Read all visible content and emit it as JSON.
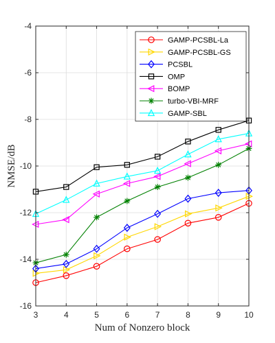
{
  "chart_data": {
    "type": "line",
    "title": "",
    "xlabel": "Num of Nonzero block",
    "ylabel": "NMSE/dB",
    "xlim": [
      3,
      10
    ],
    "ylim": [
      -16,
      -4
    ],
    "x": [
      3,
      4,
      5,
      6,
      7,
      8,
      9,
      10
    ],
    "xticks": [
      3,
      4,
      5,
      6,
      7,
      8,
      9,
      10
    ],
    "yticks": [
      -16,
      -14,
      -12,
      -10,
      -8,
      -6,
      -4
    ],
    "grid": true,
    "legend": "top-right",
    "series": [
      {
        "name": "GAMP-PCSBL-La",
        "color": "#ff0000",
        "marker": "circle",
        "values": [
          -15.0,
          -14.7,
          -14.3,
          -13.55,
          -13.15,
          -12.45,
          -12.2,
          -11.6
        ]
      },
      {
        "name": "GAMP-PCSBL-GS",
        "color": "#ffd700",
        "marker": "triangle-right",
        "values": [
          -14.6,
          -14.45,
          -13.85,
          -13.05,
          -12.6,
          -12.05,
          -11.8,
          -11.3
        ]
      },
      {
        "name": "PCSBL",
        "color": "#0000ff",
        "marker": "diamond",
        "values": [
          -14.4,
          -14.2,
          -13.55,
          -12.65,
          -12.05,
          -11.4,
          -11.15,
          -11.05
        ]
      },
      {
        "name": "OMP",
        "color": "#000000",
        "marker": "square",
        "values": [
          -11.1,
          -10.9,
          -10.05,
          -9.95,
          -9.6,
          -8.95,
          -8.45,
          -8.05
        ]
      },
      {
        "name": "BOMP",
        "color": "#ff00ff",
        "marker": "triangle-left",
        "values": [
          -12.5,
          -12.3,
          -11.2,
          -10.75,
          -10.45,
          -9.9,
          -9.35,
          -9.05
        ]
      },
      {
        "name": "turbo-VBI-MRF",
        "color": "#008000",
        "marker": "star",
        "values": [
          -14.15,
          -13.8,
          -12.2,
          -11.5,
          -10.9,
          -10.5,
          -9.95,
          -9.25
        ]
      },
      {
        "name": "GAMP-SBL",
        "color": "#00ffff",
        "marker": "triangle-up",
        "values": [
          -12.05,
          -11.45,
          -10.75,
          -10.45,
          -10.2,
          -9.5,
          -8.85,
          -8.6
        ]
      }
    ]
  }
}
